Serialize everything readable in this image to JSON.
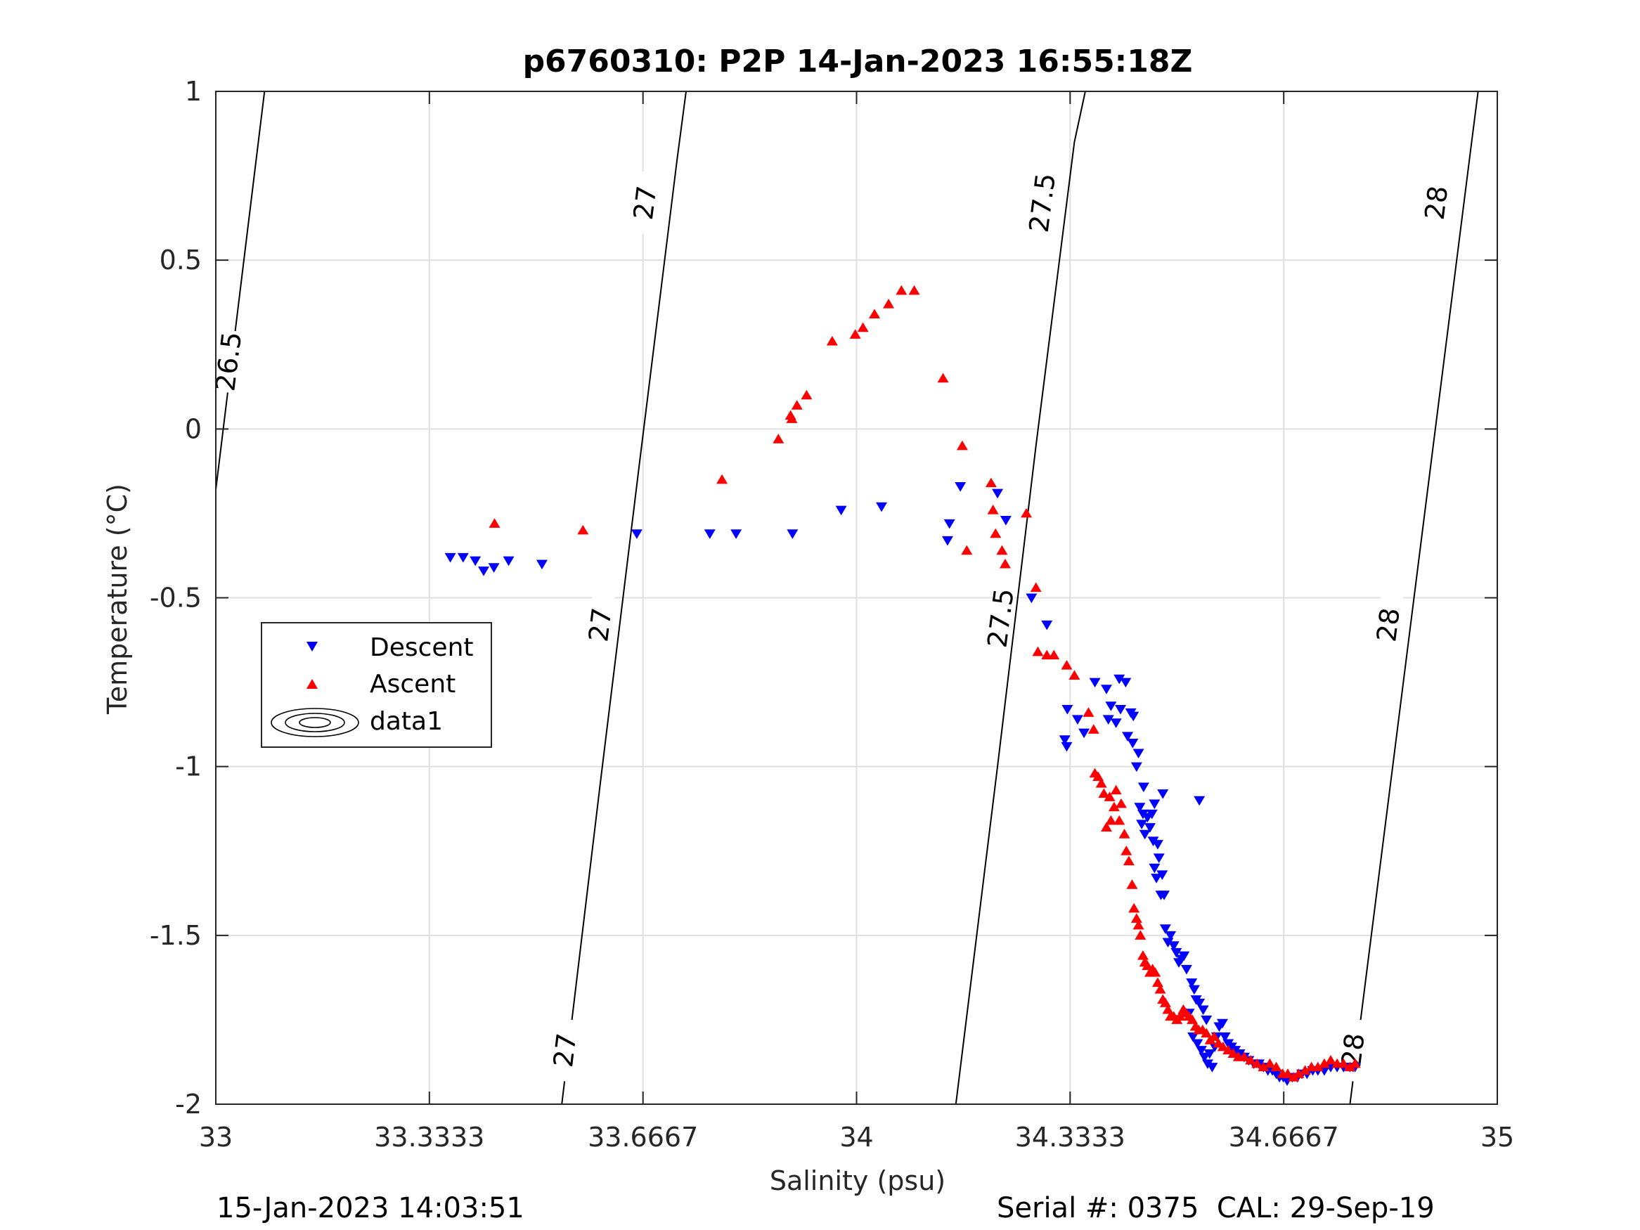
{
  "chart_data": {
    "type": "scatter",
    "title": "p6760310: P2P 14-Jan-2023 16:55:18Z",
    "xlabel": "Salinity (psu)",
    "ylabel": "Temperature (°C)",
    "xlim": [
      33,
      35
    ],
    "ylim": [
      -2,
      1
    ],
    "xticks": [
      33,
      33.3333,
      33.6667,
      34,
      34.3333,
      34.6667,
      35
    ],
    "xtick_labels": [
      "33",
      "33.3333",
      "33.6667",
      "34",
      "34.3333",
      "34.6667",
      "35"
    ],
    "yticks": [
      -2,
      -1.5,
      -1,
      -0.5,
      0,
      0.5,
      1
    ],
    "ytick_labels": [
      "-2",
      "-1.5",
      "-1",
      "-0.5",
      "0",
      "0.5",
      "1"
    ],
    "grid": true,
    "legend_position": "left-middle",
    "legend": [
      "Descent",
      "Ascent",
      "data1"
    ],
    "colors": {
      "descent": "#0000ff",
      "ascent": "#ff0000",
      "contour": "#000000",
      "grid": "#e0e0e0"
    },
    "series": [
      {
        "name": "Descent",
        "marker": "triangle-down",
        "color": "#0000ff",
        "points": [
          [
            33.366,
            -0.38
          ],
          [
            33.386,
            -0.38
          ],
          [
            33.405,
            -0.39
          ],
          [
            33.418,
            -0.42
          ],
          [
            33.434,
            -0.41
          ],
          [
            33.457,
            -0.39
          ],
          [
            33.509,
            -0.4
          ],
          [
            33.657,
            -0.31
          ],
          [
            33.771,
            -0.31
          ],
          [
            33.812,
            -0.31
          ],
          [
            33.9,
            -0.31
          ],
          [
            33.976,
            -0.24
          ],
          [
            34.039,
            -0.23
          ],
          [
            34.142,
            -0.33
          ],
          [
            34.145,
            -0.28
          ],
          [
            34.162,
            -0.17
          ],
          [
            34.22,
            -0.19
          ],
          [
            34.233,
            -0.27
          ],
          [
            34.273,
            -0.5
          ],
          [
            34.297,
            -0.58
          ],
          [
            34.325,
            -0.92
          ],
          [
            34.328,
            -0.94
          ],
          [
            34.329,
            -0.83
          ],
          [
            34.345,
            -0.86
          ],
          [
            34.355,
            -0.9
          ],
          [
            34.372,
            -0.75
          ],
          [
            34.39,
            -0.77
          ],
          [
            34.393,
            -0.86
          ],
          [
            34.397,
            -0.82
          ],
          [
            34.405,
            -0.87
          ],
          [
            34.41,
            -0.74
          ],
          [
            34.412,
            -0.83
          ],
          [
            34.42,
            -0.75
          ],
          [
            34.423,
            -0.91
          ],
          [
            34.428,
            -0.84
          ],
          [
            34.431,
            -0.93
          ],
          [
            34.432,
            -0.85
          ],
          [
            34.437,
            -1.0
          ],
          [
            34.44,
            -0.96
          ],
          [
            34.442,
            -1.12
          ],
          [
            34.445,
            -1.17
          ],
          [
            34.447,
            -1.14
          ],
          [
            34.448,
            -1.06
          ],
          [
            34.45,
            -1.2
          ],
          [
            34.454,
            -1.15
          ],
          [
            34.458,
            -1.18
          ],
          [
            34.461,
            -1.14
          ],
          [
            34.463,
            -1.22
          ],
          [
            34.465,
            -1.11
          ],
          [
            34.465,
            -1.3
          ],
          [
            34.468,
            -1.33
          ],
          [
            34.47,
            -1.23
          ],
          [
            34.472,
            -1.27
          ],
          [
            34.475,
            -1.38
          ],
          [
            34.477,
            -1.32
          ],
          [
            34.478,
            -1.08
          ],
          [
            34.48,
            -1.38
          ],
          [
            34.482,
            -1.48
          ],
          [
            34.486,
            -1.52
          ],
          [
            34.49,
            -1.5
          ],
          [
            34.495,
            -1.53
          ],
          [
            34.499,
            -1.55
          ],
          [
            34.503,
            -1.58
          ],
          [
            34.507,
            -1.57
          ],
          [
            34.511,
            -1.56
          ],
          [
            34.515,
            -1.6
          ],
          [
            34.519,
            -1.73
          ],
          [
            34.523,
            -1.64
          ],
          [
            34.525,
            -1.8
          ],
          [
            34.527,
            -1.66
          ],
          [
            34.53,
            -1.69
          ],
          [
            34.532,
            -1.82
          ],
          [
            34.535,
            -1.7
          ],
          [
            34.538,
            -1.84
          ],
          [
            34.541,
            -1.72
          ],
          [
            34.543,
            -1.86
          ],
          [
            34.546,
            -1.75
          ],
          [
            34.548,
            -1.88
          ],
          [
            34.551,
            -1.85
          ],
          [
            34.555,
            -1.89
          ],
          [
            34.559,
            -1.83
          ],
          [
            34.562,
            -1.8
          ],
          [
            34.566,
            -1.77
          ],
          [
            34.571,
            -1.76
          ],
          [
            34.575,
            -1.8
          ],
          [
            34.58,
            -1.82
          ],
          [
            34.585,
            -1.83
          ],
          [
            34.591,
            -1.84
          ],
          [
            34.598,
            -1.85
          ],
          [
            34.605,
            -1.86
          ],
          [
            34.612,
            -1.87
          ],
          [
            34.62,
            -1.88
          ],
          [
            34.628,
            -1.88
          ],
          [
            34.635,
            -1.89
          ],
          [
            34.642,
            -1.9
          ],
          [
            34.649,
            -1.9
          ],
          [
            34.655,
            -1.91
          ],
          [
            34.66,
            -1.92
          ],
          [
            34.666,
            -1.92
          ],
          [
            34.672,
            -1.93
          ],
          [
            34.68,
            -1.92
          ],
          [
            34.688,
            -1.92
          ],
          [
            34.695,
            -1.91
          ],
          [
            34.703,
            -1.91
          ],
          [
            34.712,
            -1.9
          ],
          [
            34.72,
            -1.9
          ],
          [
            34.73,
            -1.9
          ],
          [
            34.74,
            -1.89
          ],
          [
            34.75,
            -1.89
          ],
          [
            34.76,
            -1.89
          ],
          [
            34.77,
            -1.89
          ],
          [
            34.775,
            -1.89
          ],
          [
            34.778,
            -1.89
          ],
          [
            34.535,
            -1.1
          ]
        ]
      },
      {
        "name": "Ascent",
        "marker": "triangle-up",
        "color": "#ff0000",
        "points": [
          [
            33.435,
            -0.28
          ],
          [
            33.573,
            -0.3
          ],
          [
            33.79,
            -0.15
          ],
          [
            33.878,
            -0.03
          ],
          [
            33.897,
            0.04
          ],
          [
            33.899,
            0.03
          ],
          [
            33.907,
            0.07
          ],
          [
            33.922,
            0.1
          ],
          [
            33.962,
            0.26
          ],
          [
            33.998,
            0.28
          ],
          [
            34.01,
            0.3
          ],
          [
            34.028,
            0.34
          ],
          [
            34.05,
            0.37
          ],
          [
            34.07,
            0.41
          ],
          [
            34.09,
            0.41
          ],
          [
            34.135,
            0.15
          ],
          [
            34.165,
            -0.05
          ],
          [
            34.172,
            -0.36
          ],
          [
            34.21,
            -0.16
          ],
          [
            34.213,
            -0.24
          ],
          [
            34.217,
            -0.31
          ],
          [
            34.227,
            -0.36
          ],
          [
            34.232,
            -0.4
          ],
          [
            34.265,
            -0.25
          ],
          [
            34.28,
            -0.47
          ],
          [
            34.283,
            -0.66
          ],
          [
            34.297,
            -0.67
          ],
          [
            34.308,
            -0.67
          ],
          [
            34.328,
            -0.7
          ],
          [
            34.34,
            -0.73
          ],
          [
            34.362,
            -0.84
          ],
          [
            34.37,
            -0.89
          ],
          [
            34.372,
            -1.02
          ],
          [
            34.377,
            -1.03
          ],
          [
            34.382,
            -1.05
          ],
          [
            34.386,
            -1.08
          ],
          [
            34.39,
            -1.18
          ],
          [
            34.395,
            -1.09
          ],
          [
            34.397,
            -1.16
          ],
          [
            34.402,
            -1.12
          ],
          [
            34.405,
            -1.07
          ],
          [
            34.41,
            -1.16
          ],
          [
            34.413,
            -1.11
          ],
          [
            34.418,
            -1.2
          ],
          [
            34.421,
            -1.25
          ],
          [
            34.425,
            -1.28
          ],
          [
            34.43,
            -1.35
          ],
          [
            34.433,
            -1.42
          ],
          [
            34.437,
            -1.45
          ],
          [
            34.44,
            -1.47
          ],
          [
            34.443,
            -1.5
          ],
          [
            34.447,
            -1.56
          ],
          [
            34.45,
            -1.58
          ],
          [
            34.454,
            -1.59
          ],
          [
            34.458,
            -1.61
          ],
          [
            34.462,
            -1.6
          ],
          [
            34.466,
            -1.61
          ],
          [
            34.47,
            -1.64
          ],
          [
            34.474,
            -1.66
          ],
          [
            34.478,
            -1.69
          ],
          [
            34.482,
            -1.7
          ],
          [
            34.486,
            -1.72
          ],
          [
            34.49,
            -1.74
          ],
          [
            34.495,
            -1.74
          ],
          [
            34.5,
            -1.75
          ],
          [
            34.505,
            -1.74
          ],
          [
            34.51,
            -1.72
          ],
          [
            34.514,
            -1.73
          ],
          [
            34.519,
            -1.74
          ],
          [
            34.524,
            -1.75
          ],
          [
            34.529,
            -1.77
          ],
          [
            34.534,
            -1.78
          ],
          [
            34.54,
            -1.78
          ],
          [
            34.546,
            -1.79
          ],
          [
            34.552,
            -1.81
          ],
          [
            34.558,
            -1.8
          ],
          [
            34.565,
            -1.82
          ],
          [
            34.572,
            -1.83
          ],
          [
            34.58,
            -1.84
          ],
          [
            34.588,
            -1.85
          ],
          [
            34.596,
            -1.86
          ],
          [
            34.605,
            -1.86
          ],
          [
            34.615,
            -1.87
          ],
          [
            34.625,
            -1.88
          ],
          [
            34.635,
            -1.89
          ],
          [
            34.645,
            -1.88
          ],
          [
            34.655,
            -1.89
          ],
          [
            34.665,
            -1.91
          ],
          [
            34.673,
            -1.91
          ],
          [
            34.682,
            -1.92
          ],
          [
            34.69,
            -1.91
          ],
          [
            34.7,
            -1.9
          ],
          [
            34.71,
            -1.89
          ],
          [
            34.72,
            -1.89
          ],
          [
            34.73,
            -1.88
          ],
          [
            34.74,
            -1.87
          ],
          [
            34.75,
            -1.88
          ],
          [
            34.76,
            -1.88
          ],
          [
            34.77,
            -1.89
          ],
          [
            34.778,
            -1.88
          ]
        ]
      }
    ],
    "contours": [
      {
        "level": "26.5",
        "points": [
          [
            33.0,
            -0.18
          ],
          [
            33.076,
            1.0
          ]
        ],
        "labels": [
          {
            "text": "26.5",
            "at": [
              33.02,
              0.2
            ]
          }
        ]
      },
      {
        "level": "27",
        "points": [
          [
            33.54,
            -2.0
          ],
          [
            33.6,
            -1.05
          ],
          [
            33.66,
            -0.12
          ],
          [
            33.72,
            0.8
          ],
          [
            33.734,
            1.0
          ]
        ],
        "labels": [
          {
            "text": "27",
            "at": [
              33.545,
              -1.84
            ]
          },
          {
            "text": "27",
            "at": [
              33.6,
              -0.58
            ]
          },
          {
            "text": "27",
            "at": [
              33.67,
              0.67
            ]
          }
        ]
      },
      {
        "level": "27.5",
        "points": [
          [
            34.155,
            -2.0
          ],
          [
            34.22,
            -1.0
          ],
          [
            34.28,
            -0.05
          ],
          [
            34.34,
            0.85
          ],
          [
            34.357,
            1.0
          ]
        ],
        "labels": [
          {
            "text": "27.5",
            "at": [
              34.225,
              -0.56
            ]
          },
          {
            "text": "27.5",
            "at": [
              34.29,
              0.67
            ]
          }
        ]
      },
      {
        "level": "28",
        "points": [
          [
            34.77,
            -2.0
          ],
          [
            34.84,
            -0.95
          ],
          [
            34.9,
            -0.05
          ],
          [
            34.96,
            0.85
          ],
          [
            34.97,
            1.0
          ]
        ],
        "labels": [
          {
            "text": "28",
            "at": [
              34.775,
              -1.84
            ]
          },
          {
            "text": "28",
            "at": [
              34.83,
              -0.58
            ]
          },
          {
            "text": "28",
            "at": [
              34.905,
              0.67
            ]
          }
        ]
      }
    ]
  },
  "footer": {
    "timestamp": "15-Jan-2023 14:03:51",
    "serial": "Serial #: 0375  CAL: 29-Sep-19"
  }
}
